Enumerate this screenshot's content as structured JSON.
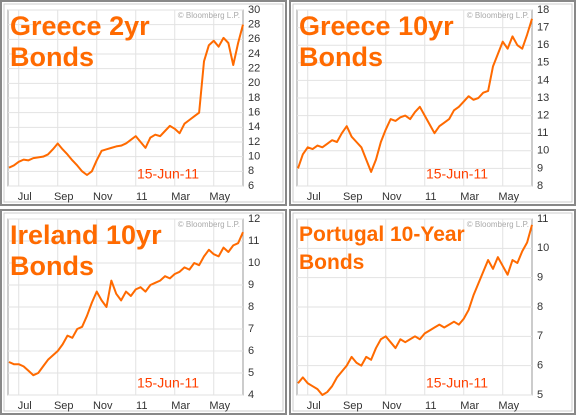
{
  "chart_data": [
    {
      "type": "line",
      "title": [
        "Greece 2yr",
        "Bonds"
      ],
      "annotations": [
        "15-Jun-11",
        "© Bloomberg L.P."
      ],
      "x": [
        0.5,
        0.75,
        1,
        1.25,
        1.5,
        1.75,
        2,
        2.25,
        2.5,
        2.75,
        3,
        3.25,
        3.5,
        3.75,
        4,
        4.25,
        4.5,
        4.75,
        5,
        5.25,
        5.5,
        5.75,
        6,
        6.25,
        6.5,
        6.75,
        7,
        7.25,
        7.5,
        7.75,
        8,
        8.25,
        8.5,
        8.75,
        9,
        9.25,
        9.5,
        9.75,
        10,
        10.25,
        10.5,
        10.75,
        11,
        11.25,
        11.5,
        11.75,
        12,
        12.25,
        12.5
      ],
      "series": [
        {
          "name": "Greece 2yr",
          "color": "#ff6a00",
          "values": [
            8.5,
            8.8,
            9.3,
            9.6,
            9.5,
            9.8,
            9.9,
            10.0,
            10.3,
            11.0,
            11.8,
            11.0,
            10.3,
            9.5,
            8.8,
            8.0,
            7.5,
            8.0,
            9.5,
            10.8,
            11.0,
            11.2,
            11.4,
            11.5,
            11.8,
            12.3,
            12.8,
            12.0,
            11.2,
            12.6,
            13.0,
            12.8,
            13.5,
            14.2,
            13.8,
            13.2,
            14.5,
            15.0,
            15.5,
            16.0,
            23.0,
            25.2,
            25.8,
            25.0,
            26.2,
            25.5,
            22.5,
            25.5,
            28.0
          ]
        }
      ],
      "xlim": [
        0.45,
        12.5
      ],
      "xticks": [
        {
          "value": 1,
          "label": "Jul"
        },
        {
          "value": 3,
          "label": "Sep"
        },
        {
          "value": 5,
          "label": "Nov"
        },
        {
          "value": 7,
          "label": "11"
        },
        {
          "value": 9,
          "label": "Mar"
        },
        {
          "value": 11,
          "label": "May"
        }
      ],
      "ylim": [
        6,
        30
      ],
      "yticks": [
        6,
        8,
        10,
        12,
        14,
        16,
        18,
        20,
        22,
        24,
        26,
        28,
        30
      ],
      "grid": true
    },
    {
      "type": "line",
      "title": [
        "Greece 10yr",
        "Bonds"
      ],
      "annotations": [
        "15-Jun-11",
        "© Bloomberg L.P."
      ],
      "x": [
        0.5,
        0.75,
        1,
        1.25,
        1.5,
        1.75,
        2,
        2.25,
        2.5,
        2.75,
        3,
        3.25,
        3.5,
        3.75,
        4,
        4.25,
        4.5,
        4.75,
        5,
        5.25,
        5.5,
        5.75,
        6,
        6.25,
        6.5,
        6.75,
        7,
        7.25,
        7.5,
        7.75,
        8,
        8.25,
        8.5,
        8.75,
        9,
        9.25,
        9.5,
        9.75,
        10,
        10.25,
        10.5,
        10.75,
        11,
        11.25,
        11.5,
        11.75,
        12,
        12.25,
        12.5
      ],
      "series": [
        {
          "name": "Greece 10yr",
          "color": "#ff6a00",
          "values": [
            9.0,
            9.8,
            10.2,
            10.1,
            10.3,
            10.2,
            10.4,
            10.6,
            10.5,
            11.0,
            11.4,
            10.8,
            10.5,
            10.2,
            9.5,
            8.8,
            9.5,
            10.5,
            11.2,
            11.8,
            11.7,
            11.9,
            12.0,
            11.8,
            12.2,
            12.5,
            12.0,
            11.5,
            11.0,
            11.4,
            11.6,
            11.8,
            12.3,
            12.5,
            12.8,
            13.1,
            12.9,
            13.0,
            13.3,
            13.4,
            14.8,
            15.5,
            16.2,
            15.8,
            16.5,
            16.0,
            15.8,
            16.6,
            17.5
          ]
        }
      ],
      "xlim": [
        0.45,
        12.5
      ],
      "xticks": [
        {
          "value": 1,
          "label": "Jul"
        },
        {
          "value": 3,
          "label": "Sep"
        },
        {
          "value": 5,
          "label": "Nov"
        },
        {
          "value": 7,
          "label": "11"
        },
        {
          "value": 9,
          "label": "Mar"
        },
        {
          "value": 11,
          "label": "May"
        }
      ],
      "ylim": [
        8,
        18
      ],
      "yticks": [
        8,
        9,
        10,
        11,
        12,
        13,
        14,
        15,
        16,
        17,
        18
      ],
      "grid": true
    },
    {
      "type": "line",
      "title": [
        "Ireland 10yr",
        "Bonds"
      ],
      "annotations": [
        "15-Jun-11",
        "© Bloomberg L.P."
      ],
      "x": [
        0.5,
        0.75,
        1,
        1.25,
        1.5,
        1.75,
        2,
        2.25,
        2.5,
        2.75,
        3,
        3.25,
        3.5,
        3.75,
        4,
        4.25,
        4.5,
        4.75,
        5,
        5.25,
        5.5,
        5.75,
        6,
        6.25,
        6.5,
        6.75,
        7,
        7.25,
        7.5,
        7.75,
        8,
        8.25,
        8.5,
        8.75,
        9,
        9.25,
        9.5,
        9.75,
        10,
        10.25,
        10.5,
        10.75,
        11,
        11.25,
        11.5,
        11.75,
        12,
        12.25,
        12.5
      ],
      "series": [
        {
          "name": "Ireland 10yr",
          "color": "#ff6a00",
          "values": [
            5.5,
            5.4,
            5.4,
            5.3,
            5.1,
            4.9,
            5.0,
            5.3,
            5.6,
            5.8,
            6.0,
            6.3,
            6.7,
            6.6,
            7.0,
            7.1,
            7.6,
            8.2,
            8.7,
            8.3,
            8.0,
            9.2,
            8.6,
            8.3,
            8.7,
            8.5,
            8.8,
            8.9,
            8.7,
            9.0,
            9.1,
            9.2,
            9.4,
            9.3,
            9.5,
            9.6,
            9.8,
            9.7,
            10.0,
            9.9,
            10.3,
            10.6,
            10.4,
            10.3,
            10.7,
            10.5,
            10.8,
            10.9,
            11.4
          ]
        }
      ],
      "xlim": [
        0.45,
        12.5
      ],
      "xticks": [
        {
          "value": 1,
          "label": "Jul"
        },
        {
          "value": 3,
          "label": "Sep"
        },
        {
          "value": 5,
          "label": "Nov"
        },
        {
          "value": 7,
          "label": "11"
        },
        {
          "value": 9,
          "label": "Mar"
        },
        {
          "value": 11,
          "label": "May"
        }
      ],
      "ylim": [
        4,
        12
      ],
      "yticks": [
        4,
        5,
        6,
        7,
        8,
        9,
        10,
        11,
        12
      ],
      "grid": true
    },
    {
      "type": "line",
      "title": [
        "Portugal 10-Year",
        "Bonds"
      ],
      "annotations": [
        "15-Jun-11",
        "© Bloomberg L.P."
      ],
      "x": [
        0.5,
        0.75,
        1,
        1.25,
        1.5,
        1.75,
        2,
        2.25,
        2.5,
        2.75,
        3,
        3.25,
        3.5,
        3.75,
        4,
        4.25,
        4.5,
        4.75,
        5,
        5.25,
        5.5,
        5.75,
        6,
        6.25,
        6.5,
        6.75,
        7,
        7.25,
        7.5,
        7.75,
        8,
        8.25,
        8.5,
        8.75,
        9,
        9.25,
        9.5,
        9.75,
        10,
        10.25,
        10.5,
        10.75,
        11,
        11.25,
        11.5,
        11.75,
        12,
        12.25,
        12.5
      ],
      "series": [
        {
          "name": "Portugal 10-Year",
          "color": "#ff6a00",
          "values": [
            5.4,
            5.6,
            5.4,
            5.3,
            5.2,
            5.0,
            5.1,
            5.3,
            5.6,
            5.8,
            6.0,
            6.3,
            6.1,
            6.0,
            6.3,
            6.2,
            6.6,
            6.9,
            7.0,
            6.8,
            6.6,
            6.9,
            6.8,
            6.9,
            7.0,
            6.9,
            7.1,
            7.2,
            7.3,
            7.4,
            7.3,
            7.4,
            7.5,
            7.4,
            7.6,
            7.9,
            8.4,
            8.8,
            9.2,
            9.6,
            9.3,
            9.7,
            9.4,
            9.1,
            9.6,
            9.5,
            9.9,
            10.2,
            10.8
          ]
        }
      ],
      "xlim": [
        0.45,
        12.5
      ],
      "xticks": [
        {
          "value": 1,
          "label": "Jul"
        },
        {
          "value": 3,
          "label": "Sep"
        },
        {
          "value": 5,
          "label": "Nov"
        },
        {
          "value": 7,
          "label": "11"
        },
        {
          "value": 9,
          "label": "Mar"
        },
        {
          "value": 11,
          "label": "May"
        }
      ],
      "ylim": [
        5,
        11
      ],
      "yticks": [
        5,
        6,
        7,
        8,
        9,
        10,
        11
      ],
      "grid": true
    }
  ]
}
